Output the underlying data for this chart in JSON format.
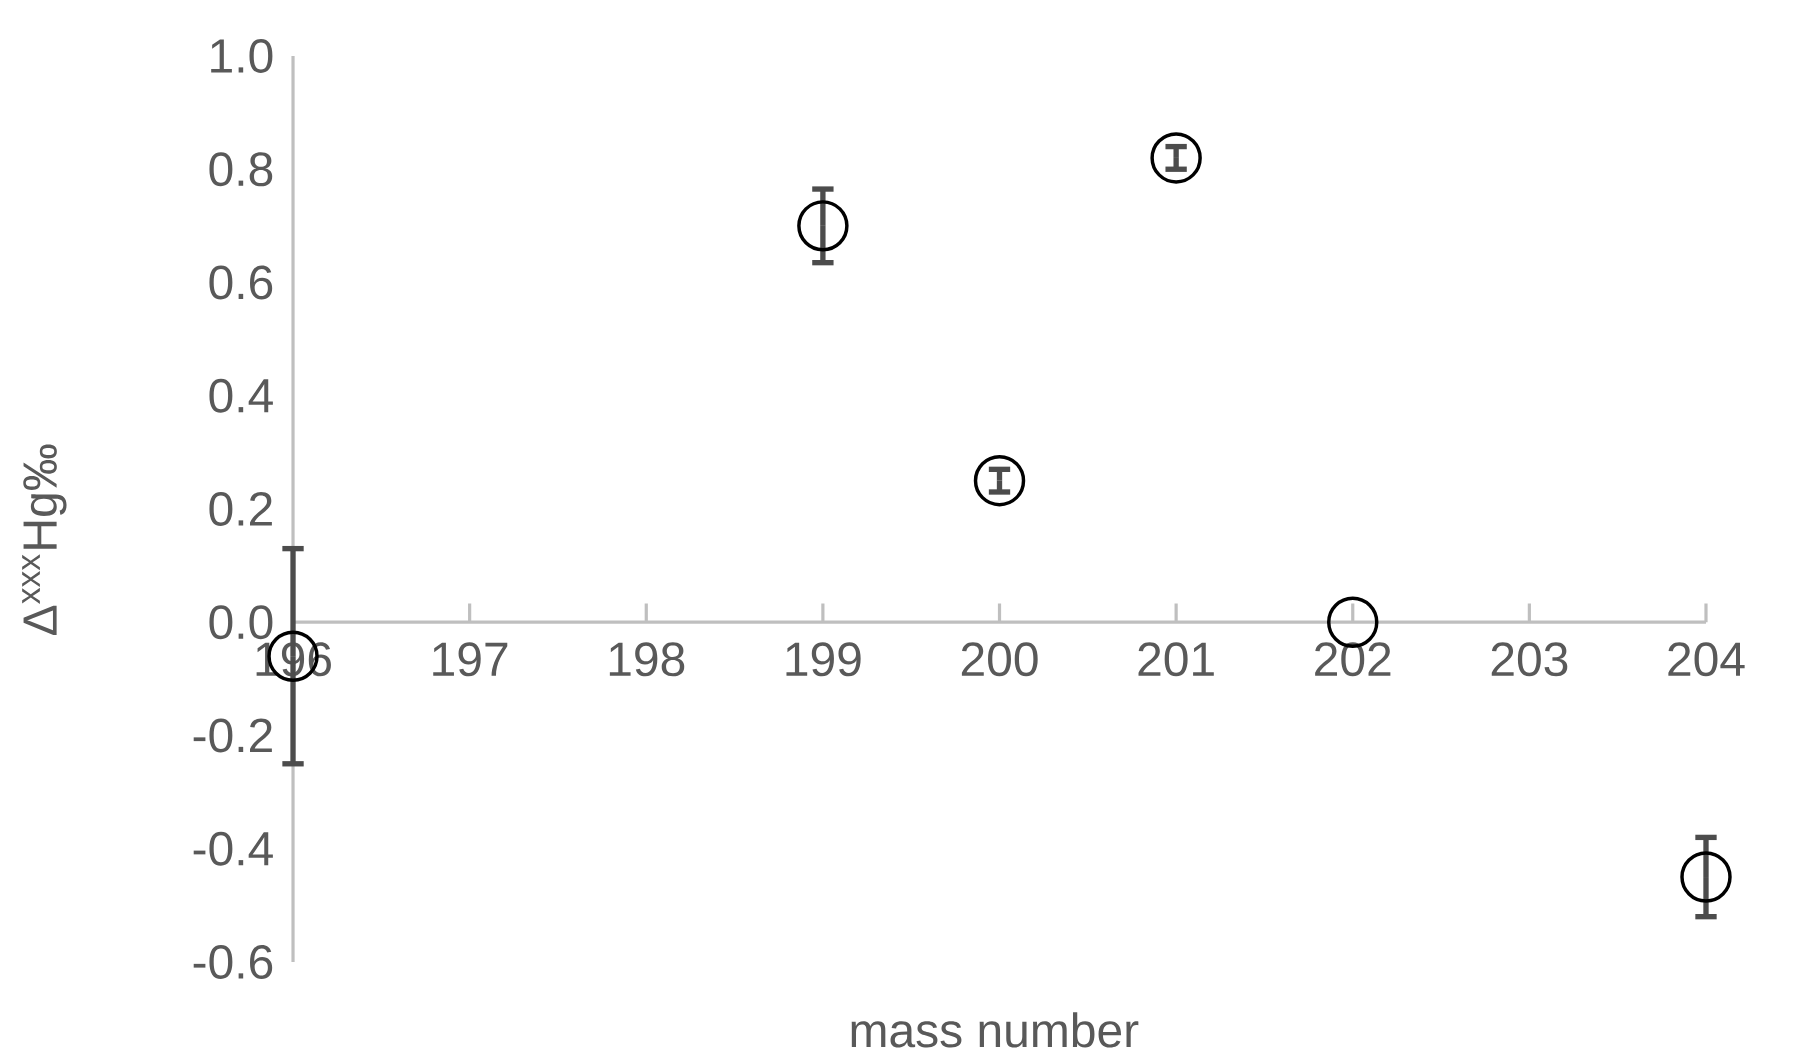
{
  "chart_data": {
    "type": "scatter",
    "xlabel": "mass number",
    "ylabel": "Δ$^{xxx}$Hg‰",
    "x": [
      196,
      199,
      200,
      201,
      202,
      204
    ],
    "values": [
      -0.06,
      0.7,
      0.25,
      0.82,
      0.0,
      -0.45
    ],
    "errors": [
      0.19,
      0.065,
      0.02,
      0.02,
      null,
      0.07
    ],
    "color": "#000000",
    "marker": "circle",
    "xlim": [
      196,
      204
    ],
    "xticks": [
      196,
      197,
      198,
      199,
      200,
      201,
      202,
      203,
      204
    ],
    "ylim": [
      -0.6,
      1.0
    ],
    "yticks": [
      {
        "value": -0.6,
        "label": "-0.6"
      },
      {
        "value": -0.4,
        "label": "-0.4"
      },
      {
        "value": -0.2,
        "label": "-0.2"
      },
      {
        "value": 0,
        "label": "0.0"
      },
      {
        "value": 0.2,
        "label": "0.2"
      },
      {
        "value": 0.4,
        "label": "0.4"
      },
      {
        "value": 0.6,
        "label": "0.6"
      },
      {
        "value": 0.8,
        "label": "0.8"
      },
      {
        "value": 1.0,
        "label": "1.0"
      }
    ]
  }
}
